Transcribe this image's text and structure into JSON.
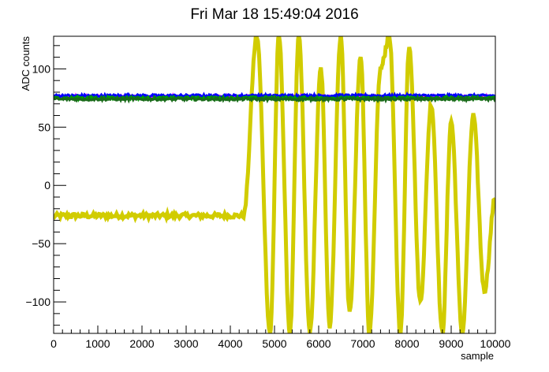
{
  "chart_data": {
    "type": "line",
    "title": "Fri Mar 18 15:49:04 2016",
    "xlabel": "sample",
    "ylabel": "ADC counts",
    "xlim": [
      0,
      10000
    ],
    "ylim": [
      -127,
      128
    ],
    "xticks": [
      "0",
      "1000",
      "2000",
      "3000",
      "4000",
      "5000",
      "6000",
      "7000",
      "8000",
      "9000",
      "10000"
    ],
    "xtick_values": [
      0,
      1000,
      2000,
      3000,
      4000,
      5000,
      6000,
      7000,
      8000,
      9000,
      10000
    ],
    "yticks": [
      "−100",
      "−50",
      "0",
      "50",
      "100"
    ],
    "ytick_values": [
      -100,
      -50,
      0,
      50,
      100
    ],
    "grid": false,
    "legend": "none",
    "series": [
      {
        "color": "#d1cc00",
        "baseline": -26,
        "baseline_until": 4300,
        "envelope_min": -127,
        "envelope_max": 128,
        "peaks_x": [
          4300,
          4600,
          4900,
          5100,
          5350,
          5550,
          5800,
          6050,
          6250,
          6500,
          6700,
          6950,
          7150,
          7400,
          7600,
          7850,
          8050,
          8300,
          8550,
          8800,
          9000,
          9250,
          9500,
          9750,
          10000
        ],
        "peaks_y": [
          -26,
          128,
          -127,
          128,
          -127,
          128,
          -127,
          100,
          -120,
          128,
          -110,
          110,
          -127,
          100,
          128,
          -127,
          120,
          -100,
          70,
          -127,
          55,
          -127,
          60,
          -90,
          -10
        ]
      },
      {
        "color": "#ff00ff",
        "level": 76
      },
      {
        "color": "#0000ff",
        "level": 77
      },
      {
        "color": "#00a000",
        "level": 75
      },
      {
        "color": "#1a6b1a",
        "level": 74
      }
    ]
  }
}
